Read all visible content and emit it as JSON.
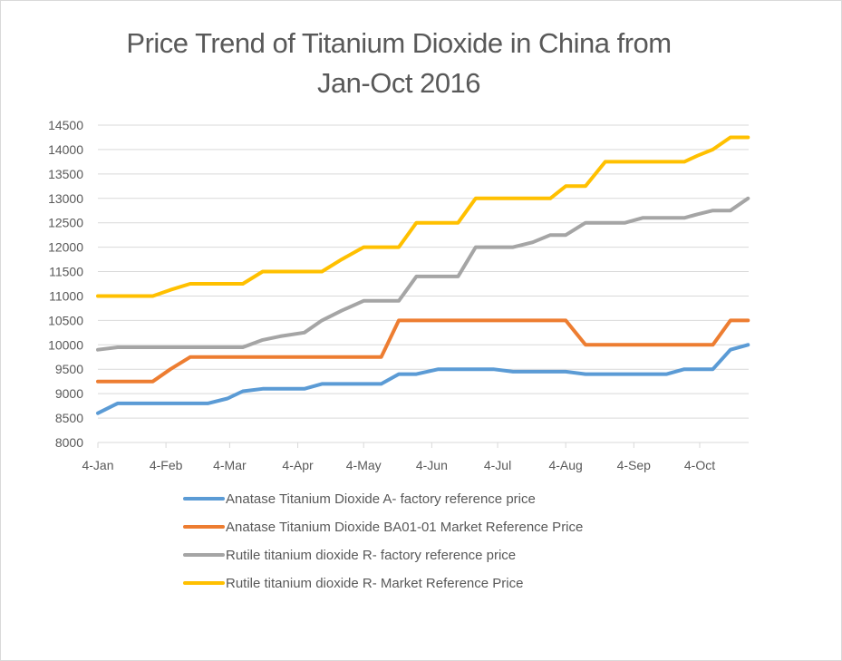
{
  "chart_data": {
    "type": "line",
    "title": "Price Trend of Titanium Dioxide in China from Jan-Oct 2016",
    "title_lines": [
      "Price Trend of Titanium Dioxide in China from",
      "Jan-Oct 2016"
    ],
    "xlabel": "",
    "ylabel": "",
    "x_unit": "days since 4-Jan-2016",
    "x": [
      0,
      9,
      17,
      25,
      33,
      42,
      50,
      59,
      66,
      75,
      83,
      94,
      102,
      111,
      121,
      129,
      137,
      145,
      155,
      164,
      172,
      180,
      189,
      198,
      206,
      213,
      222,
      231,
      240,
      248,
      259,
      267,
      273,
      280,
      288,
      296
    ],
    "x_ticks": [
      {
        "label": "4-Jan",
        "day": 0
      },
      {
        "label": "4-Feb",
        "day": 31
      },
      {
        "label": "4-Mar",
        "day": 60
      },
      {
        "label": "4-Apr",
        "day": 91
      },
      {
        "label": "4-May",
        "day": 121
      },
      {
        "label": "4-Jun",
        "day": 152
      },
      {
        "label": "4-Jul",
        "day": 182
      },
      {
        "label": "4-Aug",
        "day": 213
      },
      {
        "label": "4-Sep",
        "day": 244
      },
      {
        "label": "4-Oct",
        "day": 274
      }
    ],
    "xlim": [
      0,
      296
    ],
    "ylim": [
      8000,
      14500
    ],
    "y_ticks": [
      8000,
      8500,
      9000,
      9500,
      10000,
      10500,
      11000,
      11500,
      12000,
      12500,
      13000,
      13500,
      14000,
      14500
    ],
    "grid": true,
    "legend_position": "bottom",
    "series": [
      {
        "name": "Anatase Titanium Dioxide A- factory reference price",
        "color": "#5b9bd5",
        "values": [
          8600,
          8800,
          8800,
          8800,
          8800,
          8800,
          8800,
          8900,
          9050,
          9100,
          9100,
          9100,
          9200,
          9200,
          9200,
          9200,
          9400,
          9400,
          9500,
          9500,
          9500,
          9500,
          9450,
          9450,
          9450,
          9450,
          9400,
          9400,
          9400,
          9400,
          9400,
          9500,
          9500,
          9500,
          9900,
          10000
        ]
      },
      {
        "name": "Anatase Titanium Dioxide BA01-01 Market Reference Price",
        "color": "#ed7d31",
        "values": [
          9250,
          9250,
          9250,
          9250,
          9500,
          9750,
          9750,
          9750,
          9750,
          9750,
          9750,
          9750,
          9750,
          9750,
          9750,
          9750,
          10500,
          10500,
          10500,
          10500,
          10500,
          10500,
          10500,
          10500,
          10500,
          10500,
          10000,
          10000,
          10000,
          10000,
          10000,
          10000,
          10000,
          10000,
          10500,
          10500
        ]
      },
      {
        "name": "Rutile titanium dioxide R- factory reference price",
        "color": "#a5a5a5",
        "values": [
          9900,
          9950,
          9950,
          9950,
          9950,
          9950,
          9950,
          9950,
          9950,
          10100,
          10175,
          10250,
          10500,
          10700,
          10900,
          10900,
          10900,
          11400,
          11400,
          11400,
          12000,
          12000,
          12000,
          12100,
          12250,
          12250,
          12500,
          12500,
          12500,
          12600,
          12600,
          12600,
          12675,
          12750,
          12750,
          13000
        ]
      },
      {
        "name": "Rutile titanium dioxide R- Market Reference Price",
        "color": "#ffc000",
        "values": [
          11000,
          11000,
          11000,
          11000,
          11125,
          11250,
          11250,
          11250,
          11250,
          11500,
          11500,
          11500,
          11500,
          11750,
          12000,
          12000,
          12000,
          12500,
          12500,
          12500,
          13000,
          13000,
          13000,
          13000,
          13000,
          13250,
          13250,
          13750,
          13750,
          13750,
          13750,
          13750,
          13875,
          14000,
          14250,
          14250
        ]
      }
    ]
  }
}
